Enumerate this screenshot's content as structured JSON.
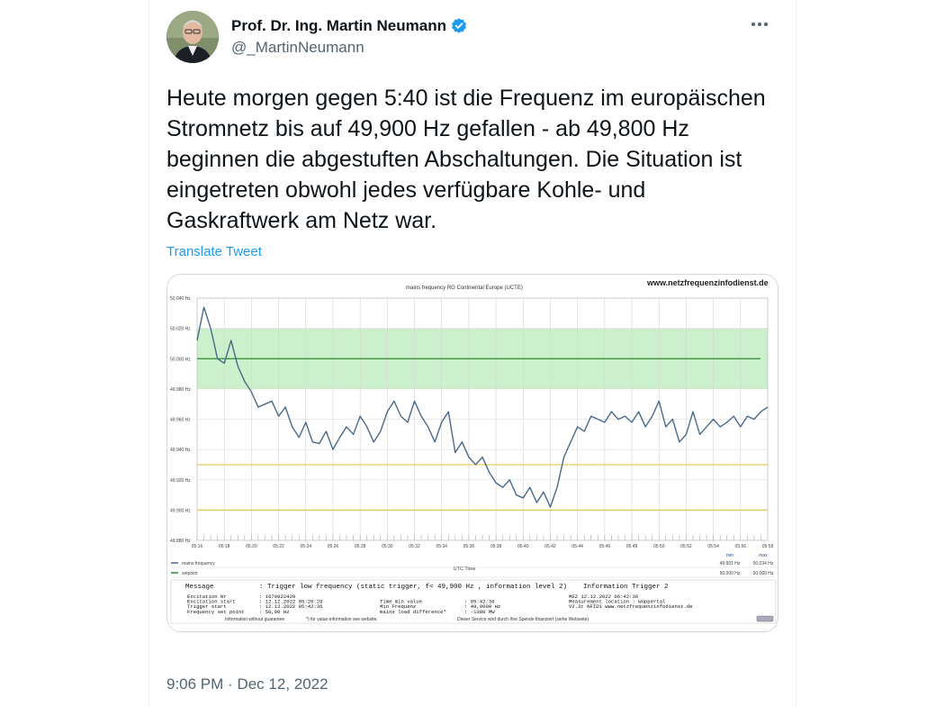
{
  "author": {
    "display_name": "Prof. Dr. Ing. Martin Neumann",
    "handle": "@_MartinNeumann",
    "verified": true,
    "verified_color": "#1d9bf0"
  },
  "tweet": {
    "text": "Heute morgen gegen 5:40 ist die Frequenz im europäischen Stromnetz bis auf 49,900 Hz gefallen - ab 49,800 Hz beginnen die abgestuften Abschaltungen. Die Situation ist eingetreten obwohl jedes verfügbare Kohle- und Gaskraftwerk am Netz war.",
    "translate_label": "Translate Tweet",
    "time": "9:06 PM",
    "separator": "·",
    "date": "Dec 12, 2022"
  },
  "icons": {
    "more": "more-icon",
    "verified": "verified-badge-icon"
  },
  "chart_data": {
    "type": "line",
    "title": "mains frequency RG Continental Europe (UCTE)",
    "watermark": "www.netzfrequenzinfodienst.de",
    "xlabel": "UTC Time",
    "y_ticks": [
      "50.040 Hz",
      "50.020 Hz",
      "50.000 Hz",
      "49.980 Hz",
      "49.960 Hz",
      "49.940 Hz",
      "49.920 Hz",
      "49.900 Hz",
      "49.880 Hz"
    ],
    "y_tick_values": [
      50.04,
      50.02,
      50.0,
      49.98,
      49.96,
      49.94,
      49.92,
      49.9,
      49.88
    ],
    "ylim": [
      49.88,
      50.04
    ],
    "x_ticks": [
      "05:16",
      "05:18",
      "05:20",
      "05:22",
      "05:24",
      "05:26",
      "05:28",
      "05:30",
      "05:32",
      "05:34",
      "05:36",
      "05:38",
      "05:40",
      "05:42",
      "05:44",
      "05:46",
      "05:48",
      "05:50",
      "05:52",
      "05:54",
      "05:56",
      "05:58"
    ],
    "band": [
      49.98,
      50.02
    ],
    "setpoint": 50.0,
    "threshold_lines": [
      49.93,
      49.9
    ],
    "colors": {
      "line": "#4a6a8a",
      "band": "#ccf0cc",
      "setpoint": "#2e8b2e",
      "threshold": "#e6c84a"
    },
    "series": [
      {
        "x": [
          "05:16",
          "05:16:30",
          "05:17",
          "05:17:30",
          "05:18",
          "05:18:30",
          "05:19",
          "05:19:30",
          "05:20",
          "05:20:30",
          "05:21",
          "05:21:30",
          "05:22",
          "05:22:30",
          "05:23",
          "05:23:30",
          "05:24",
          "05:24:30",
          "05:25",
          "05:25:30",
          "05:26",
          "05:26:30",
          "05:27",
          "05:27:30",
          "05:28",
          "05:28:30",
          "05:29",
          "05:29:30",
          "05:30",
          "05:30:30",
          "05:31",
          "05:31:30",
          "05:32",
          "05:32:30",
          "05:33",
          "05:33:30",
          "05:34",
          "05:34:30",
          "05:35",
          "05:35:30",
          "05:36",
          "05:36:30",
          "05:37",
          "05:37:30",
          "05:38",
          "05:38:30",
          "05:39",
          "05:39:30",
          "05:40",
          "05:40:30",
          "05:41",
          "05:41:30",
          "05:42",
          "05:42:30",
          "05:43",
          "05:43:30",
          "05:44",
          "05:44:30",
          "05:45",
          "05:45:30",
          "05:46",
          "05:46:30",
          "05:47",
          "05:47:30",
          "05:48",
          "05:48:30",
          "05:49",
          "05:49:30",
          "05:50",
          "05:50:30",
          "05:51",
          "05:51:30",
          "05:52",
          "05:52:30",
          "05:53",
          "05:53:30",
          "05:54",
          "05:54:30",
          "05:55",
          "05:55:30",
          "05:56",
          "05:56:30",
          "05:57",
          "05:57:30",
          "05:58"
        ],
        "values": [
          50.012,
          50.034,
          50.02,
          50.0,
          49.997,
          50.012,
          49.995,
          49.985,
          49.978,
          49.968,
          49.97,
          49.972,
          49.962,
          49.968,
          49.955,
          49.948,
          49.958,
          49.945,
          49.944,
          49.952,
          49.94,
          49.948,
          49.955,
          49.95,
          49.962,
          49.955,
          49.945,
          49.952,
          49.965,
          49.972,
          49.962,
          49.958,
          49.972,
          49.962,
          49.955,
          49.945,
          49.958,
          49.965,
          49.938,
          49.945,
          49.935,
          49.93,
          49.935,
          49.925,
          49.918,
          49.915,
          49.92,
          49.91,
          49.908,
          49.915,
          49.905,
          49.912,
          49.902,
          49.915,
          49.935,
          49.945,
          49.955,
          49.952,
          49.962,
          49.96,
          49.958,
          49.965,
          49.96,
          49.962,
          49.958,
          49.965,
          49.955,
          49.962,
          49.972,
          49.955,
          49.96,
          49.945,
          49.95,
          49.965,
          49.95,
          49.955,
          49.96,
          49.955,
          49.958,
          49.962,
          49.955,
          49.962,
          49.96,
          49.965,
          49.968
        ]
      }
    ],
    "legend": [
      {
        "name": "mains frequency",
        "min": "49.901 Hz",
        "max": "50.034 Hz"
      },
      {
        "name": "setpoint",
        "min": "50.000 Hz",
        "max": "50.000 Hz"
      }
    ],
    "legend_min_label": "min",
    "legend_max_label": "max",
    "info": {
      "message_label": "Message",
      "message_value": ": Trigger low frequency (static trigger, f< 49,900 Hz , information level 2)",
      "message_extra": "Information Trigger 2",
      "col1_labels": [
        "Excitation Nr",
        "Excitation start",
        "Trigger start",
        "Frequency set point"
      ],
      "col1_values": [
        ": 1670822429",
        ": 12.12.2022 05:20:29",
        ": 12.12.2022 05:42:36",
        ": 50,00 Hz"
      ],
      "col2_labels": [
        "Time min value",
        "Min Frequenz",
        "mains load difference*"
      ],
      "col2_values": [
        ": 05:42:36",
        ": 49,9000 Hz",
        ": -1380 MW"
      ],
      "col3_lines": [
        "MEZ  12.12.2022 06:42:36",
        "Measurement location : Wuppertal",
        "V2.2c NFID1 www.netzfrequenzinfodienst.de"
      ],
      "footer": [
        "Information without guarantee",
        "*) for value-information see website.",
        "Dieser Service wird durch Ihre Spende finanziert (siehe Webseite)"
      ]
    }
  }
}
